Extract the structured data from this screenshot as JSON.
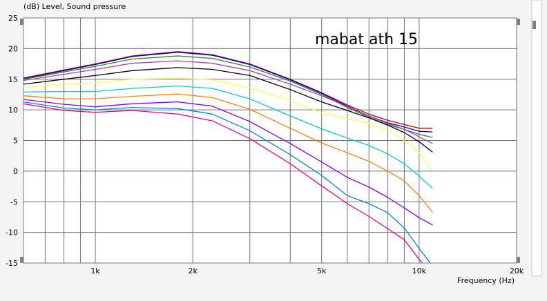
{
  "chart_data": {
    "type": "line",
    "title": "mabat ath 15",
    "ylabel": "(dB)  Level, Sound pressure",
    "xlabel": "Frequency  (Hz)",
    "x_scale": "log",
    "xlim": [
      600,
      20000
    ],
    "ylim": [
      -15,
      25
    ],
    "grid": true,
    "x_tick_labels": [
      "1k",
      "2k",
      "5k",
      "10k",
      "20k"
    ],
    "y_tick_labels": [
      "25",
      "20",
      "15",
      "10",
      "5",
      "0",
      "-5",
      "-10",
      "-15"
    ],
    "x": [
      600,
      800,
      1000,
      1300,
      1800,
      2300,
      3000,
      4000,
      5000,
      6000,
      7000,
      8000,
      9000,
      10000,
      11000
    ],
    "series": [
      {
        "color": "#c00000",
        "values": [
          15.2,
          16.5,
          17.5,
          18.8,
          19.5,
          19.0,
          17.5,
          15.0,
          12.8,
          10.8,
          9.3,
          8.3,
          7.6,
          7.0,
          7.0
        ]
      },
      {
        "color": "#0000cc",
        "values": [
          15.1,
          16.4,
          17.4,
          18.7,
          19.4,
          18.9,
          17.4,
          14.9,
          12.7,
          10.6,
          9.0,
          7.9,
          7.2,
          6.5,
          6.4
        ]
      },
      {
        "color": "#228b22",
        "values": [
          15.0,
          16.2,
          17.1,
          18.3,
          18.8,
          18.4,
          17.0,
          14.7,
          12.5,
          10.4,
          8.8,
          7.6,
          6.8,
          6.0,
          5.5
        ]
      },
      {
        "color": "#b040b0",
        "values": [
          14.8,
          15.8,
          16.6,
          17.6,
          18.0,
          17.6,
          16.4,
          14.2,
          12.3,
          10.5,
          9.0,
          7.8,
          6.8,
          5.6,
          4.5
        ]
      },
      {
        "color": "#000000",
        "values": [
          14.2,
          15.0,
          15.6,
          16.4,
          16.9,
          16.6,
          15.6,
          13.3,
          11.3,
          9.9,
          8.7,
          7.5,
          6.3,
          4.8,
          3.1
        ]
      },
      {
        "color": "#ffff50",
        "values": [
          13.7,
          14.1,
          14.4,
          15.0,
          15.2,
          14.9,
          13.6,
          11.5,
          9.5,
          8.6,
          7.8,
          6.6,
          5.0,
          3.0,
          0.0
        ]
      },
      {
        "color": "#00d0d0",
        "values": [
          12.9,
          13.0,
          13.0,
          13.5,
          13.9,
          13.5,
          11.8,
          9.0,
          6.9,
          5.4,
          4.2,
          2.8,
          1.2,
          -0.8,
          -2.8
        ]
      },
      {
        "color": "#ff8000",
        "values": [
          12.3,
          11.8,
          11.8,
          12.2,
          12.6,
          12.0,
          10.1,
          7.0,
          4.6,
          3.0,
          1.6,
          0.0,
          -1.6,
          -4.0,
          -6.7
        ]
      },
      {
        "color": "#8000ff",
        "values": [
          11.7,
          10.9,
          10.5,
          11.0,
          11.3,
          10.6,
          8.1,
          4.5,
          1.5,
          -1.0,
          -2.6,
          -4.3,
          -6.0,
          -7.6,
          -8.8
        ]
      },
      {
        "color": "#0080ff",
        "values": [
          11.3,
          10.3,
          10.0,
          10.4,
          10.2,
          9.3,
          6.6,
          2.7,
          -0.7,
          -4.0,
          -5.3,
          -6.8,
          -9.3,
          -12.6,
          -15.5
        ]
      },
      {
        "color": "#ff0080",
        "values": [
          11.0,
          9.9,
          9.6,
          9.9,
          9.3,
          8.2,
          5.3,
          1.2,
          -2.4,
          -5.3,
          -7.4,
          -9.4,
          -11.2,
          -14.4,
          -17.0
        ]
      }
    ]
  }
}
